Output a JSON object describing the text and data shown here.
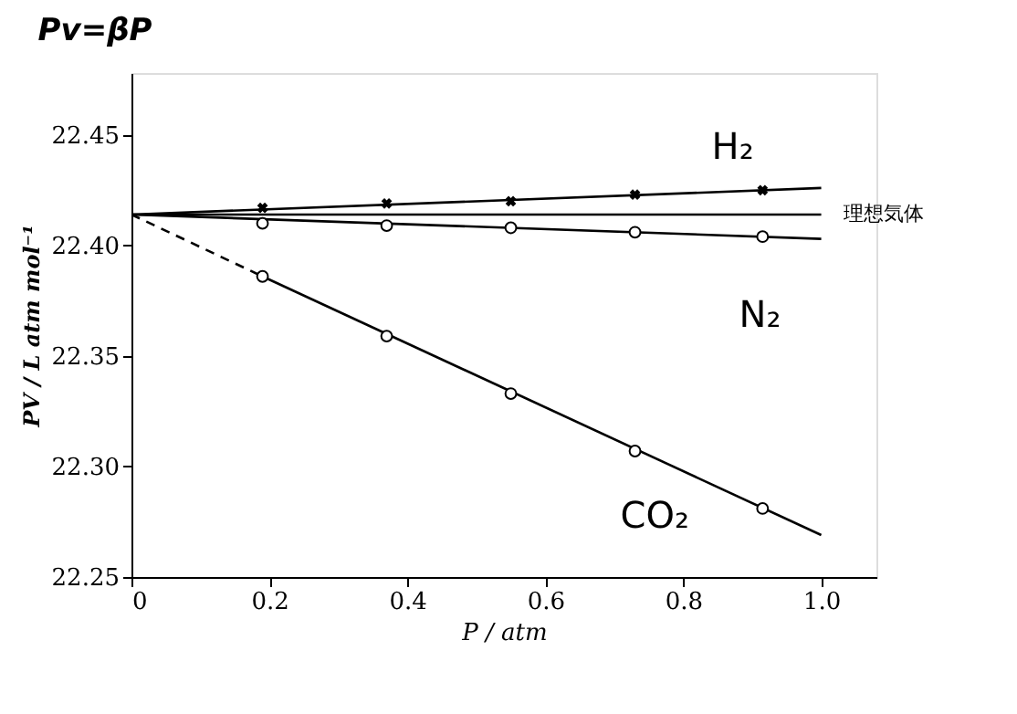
{
  "chart_data": {
    "type": "line",
    "title": "Pv=βP",
    "xlabel": "P / atm",
    "ylabel": "PV / L atm mol⁻¹",
    "xlim": [
      0,
      1.08
    ],
    "xticks": [
      {
        "value": 0,
        "label": "0"
      },
      0.2,
      0.4,
      0.6,
      0.8,
      {
        "value": 1,
        "label": "1.0"
      }
    ],
    "ylim": [
      22.25,
      22.478
    ],
    "yticks": [
      22.25,
      {
        "value": 22.3,
        "label": "22.30"
      },
      22.35,
      {
        "value": 22.4,
        "label": "22.40"
      },
      22.45
    ],
    "grid": false,
    "series": [
      {
        "name": "H₂",
        "color": "#000000",
        "marker": "none",
        "line_style": "solid",
        "x": [
          0,
          1.0
        ],
        "values": [
          22.414,
          22.426
        ]
      },
      {
        "name": "理想気体",
        "color": "#000000",
        "marker": "none",
        "line_style": "solid",
        "x": [
          0,
          1.0
        ],
        "values": [
          22.414,
          22.414
        ]
      },
      {
        "name": "N₂",
        "color": "#000000",
        "marker": "none",
        "line_style": "solid",
        "x": [
          0,
          1.0
        ],
        "values": [
          22.414,
          22.403
        ]
      },
      {
        "name": "CO₂",
        "color": "#000000",
        "marker": "none",
        "line_style": "solid",
        "x": [
          0.19,
          1.0
        ],
        "values": [
          22.386,
          22.269
        ]
      },
      {
        "color": "#000000",
        "marker": "none",
        "line_style": "dashed",
        "x": [
          0,
          0.19
        ],
        "values": [
          22.414,
          22.386
        ]
      },
      {
        "type": "scatter",
        "color": "#000000",
        "marker": "cross",
        "x": [
          0.19,
          0.37,
          0.55,
          0.73,
          0.915
        ],
        "values": [
          22.417,
          22.419,
          22.42,
          22.423,
          22.425
        ]
      },
      {
        "type": "scatter",
        "color": "#000000",
        "marker": "circle",
        "x": [
          0.19,
          0.37,
          0.55,
          0.73,
          0.915
        ],
        "values": [
          22.41,
          22.409,
          22.408,
          22.406,
          22.404
        ]
      },
      {
        "type": "scatter",
        "color": "#000000",
        "marker": "circle",
        "x": [
          0.19,
          0.37,
          0.55,
          0.73,
          0.915
        ],
        "values": [
          22.386,
          22.359,
          22.333,
          22.307,
          22.281
        ]
      }
    ]
  }
}
